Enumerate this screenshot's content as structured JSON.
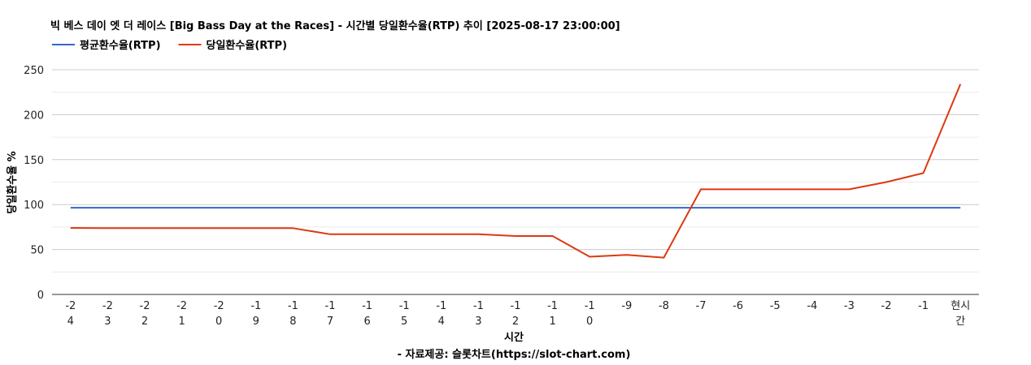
{
  "chart_data": {
    "type": "line",
    "title": "빅 베스 데이 엣 더 레이스 [Big Bass Day at the Races] - 시간별 당일환수율(RTP) 추이 [2025-08-17 23:00:00]",
    "xlabel": "시간",
    "ylabel": "당일환수율 %",
    "source": "- 자료제공: 슬롯차트(https://slot-chart.com)",
    "categories": [
      "-24",
      "-23",
      "-22",
      "-21",
      "-20",
      "-19",
      "-18",
      "-17",
      "-16",
      "-15",
      "-14",
      "-13",
      "-12",
      "-11",
      "-10",
      "-9",
      "-8",
      "-7",
      "-6",
      "-5",
      "-4",
      "-3",
      "-2",
      "-1",
      "현시간"
    ],
    "series": [
      {
        "name": "평균환수율(RTP)",
        "color": "#3366cc",
        "values": [
          96.5,
          96.5,
          96.5,
          96.5,
          96.5,
          96.5,
          96.5,
          96.5,
          96.5,
          96.5,
          96.5,
          96.5,
          96.5,
          96.5,
          96.5,
          96.5,
          96.5,
          96.5,
          96.5,
          96.5,
          96.5,
          96.5,
          96.5,
          96.5,
          96.5
        ]
      },
      {
        "name": "당일환수율(RTP)",
        "color": "#dc3912",
        "values": [
          74,
          73.7,
          73.7,
          73.7,
          73.7,
          73.7,
          73.7,
          67,
          67,
          67,
          67,
          67,
          65,
          65,
          42,
          44,
          41,
          117,
          117,
          117,
          117,
          117,
          125,
          135,
          234
        ]
      }
    ],
    "ylim": [
      0,
      250
    ],
    "yticks": [
      0,
      50,
      100,
      150,
      200,
      250
    ],
    "grid": true,
    "legend": "top-left"
  }
}
